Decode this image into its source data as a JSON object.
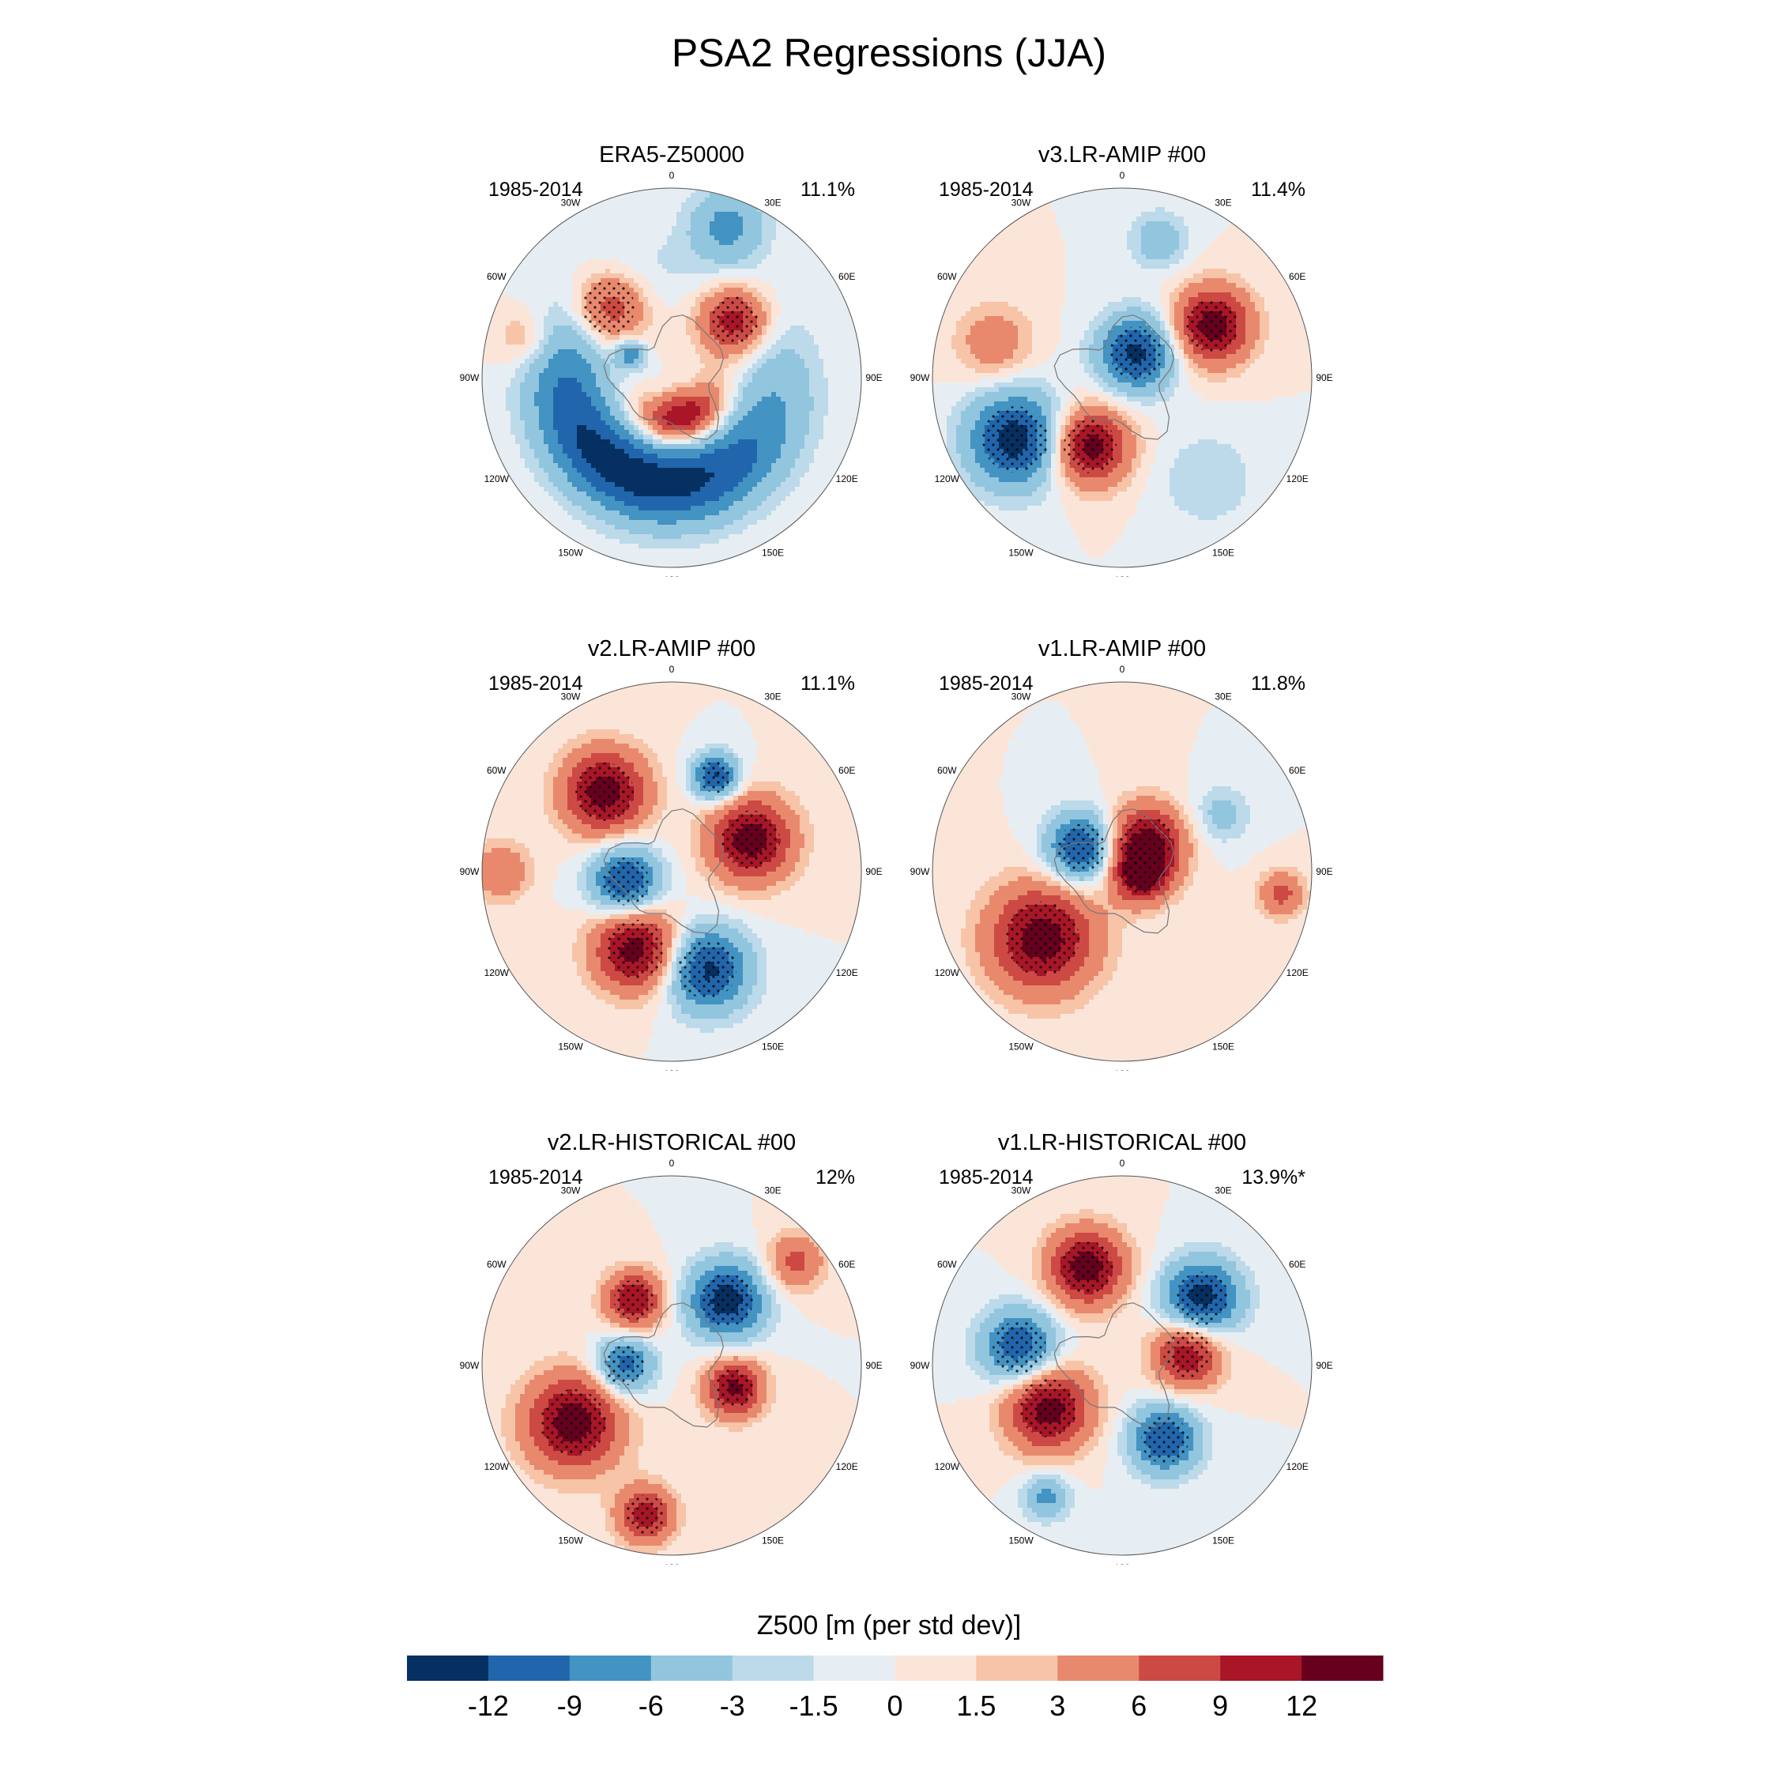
{
  "title": "PSA2 Regressions (JJA)",
  "lon_labels": [
    "0",
    "30E",
    "60E",
    "90E",
    "120E",
    "150E",
    "180",
    "150W",
    "120W",
    "90W",
    "60W",
    "30W"
  ],
  "panels": [
    {
      "title": "ERA5-Z50000",
      "period": "1985-2014",
      "percent": "11.1%",
      "blobs": [
        {
          "lon": 200,
          "r": 0.55,
          "w": 0.4,
          "v": -14,
          "arc": 110
        },
        {
          "lon": 165,
          "r": 0.22,
          "w": 0.22,
          "v": 13,
          "arc": 60
        },
        {
          "lon": 318,
          "r": 0.5,
          "w": 0.2,
          "v": 11
        },
        {
          "lon": 48,
          "r": 0.45,
          "w": 0.18,
          "v": 12
        },
        {
          "lon": 20,
          "r": 0.85,
          "w": 0.2,
          "v": -7
        },
        {
          "lon": 300,
          "r": 0.25,
          "w": 0.08,
          "v": -8
        },
        {
          "lon": 285,
          "r": 0.8,
          "w": 0.15,
          "v": 4
        }
      ]
    },
    {
      "title": "v3.LR-AMIP  #00",
      "period": "1985-2014",
      "percent": "11.4%",
      "blobs": [
        {
          "lon": 240,
          "r": 0.65,
          "w": 0.25,
          "v": -14
        },
        {
          "lon": 30,
          "r": 0.15,
          "w": 0.2,
          "v": -13
        },
        {
          "lon": 60,
          "r": 0.55,
          "w": 0.2,
          "v": 14
        },
        {
          "lon": 205,
          "r": 0.4,
          "w": 0.2,
          "v": 14
        },
        {
          "lon": 285,
          "r": 0.7,
          "w": 0.2,
          "v": 5
        },
        {
          "lon": 140,
          "r": 0.7,
          "w": 0.25,
          "v": -3
        },
        {
          "lon": 15,
          "r": 0.75,
          "w": 0.15,
          "v": -5
        }
      ]
    },
    {
      "title": "v2.LR-AMIP  #00",
      "period": "1985-2014",
      "percent": "11.1%",
      "blobs": [
        {
          "lon": 320,
          "r": 0.55,
          "w": 0.22,
          "v": 14
        },
        {
          "lon": 25,
          "r": 0.55,
          "w": 0.12,
          "v": -13
        },
        {
          "lon": 68,
          "r": 0.45,
          "w": 0.22,
          "v": 14
        },
        {
          "lon": 258,
          "r": 0.25,
          "w": 0.18,
          "v": -13
        },
        {
          "lon": 205,
          "r": 0.45,
          "w": 0.22,
          "v": 14
        },
        {
          "lon": 160,
          "r": 0.55,
          "w": 0.22,
          "v": -13
        },
        {
          "lon": 270,
          "r": 0.9,
          "w": 0.15,
          "v": 6
        }
      ]
    },
    {
      "title": "v1.LR-AMIP  #00",
      "period": "1985-2014",
      "percent": "11.8%",
      "blobs": [
        {
          "lon": 230,
          "r": 0.55,
          "w": 0.28,
          "v": 14
        },
        {
          "lon": 300,
          "r": 0.25,
          "w": 0.18,
          "v": -13
        },
        {
          "lon": 40,
          "r": 0.2,
          "w": 0.2,
          "v": 13
        },
        {
          "lon": 100,
          "r": 0.1,
          "w": 0.15,
          "v": 12
        },
        {
          "lon": 60,
          "r": 0.6,
          "w": 0.15,
          "v": -4
        },
        {
          "lon": 98,
          "r": 0.85,
          "w": 0.12,
          "v": 7
        }
      ]
    },
    {
      "title": "v2.LR-HISTORICAL  #00",
      "period": "1985-2014",
      "percent": "12%",
      "blobs": [
        {
          "lon": 240,
          "r": 0.6,
          "w": 0.25,
          "v": 14
        },
        {
          "lon": 40,
          "r": 0.45,
          "w": 0.2,
          "v": -14
        },
        {
          "lon": 270,
          "r": 0.25,
          "w": 0.15,
          "v": -11
        },
        {
          "lon": 330,
          "r": 0.4,
          "w": 0.15,
          "v": 12
        },
        {
          "lon": 110,
          "r": 0.35,
          "w": 0.15,
          "v": 13
        },
        {
          "lon": 190,
          "r": 0.8,
          "w": 0.15,
          "v": 11
        },
        {
          "lon": 50,
          "r": 0.85,
          "w": 0.15,
          "v": 7
        }
      ]
    },
    {
      "title": "v1.LR-HISTORICAL  #00",
      "period": "1985-2014",
      "percent": "13.9%*",
      "blobs": [
        {
          "lon": 340,
          "r": 0.55,
          "w": 0.2,
          "v": 14
        },
        {
          "lon": 50,
          "r": 0.55,
          "w": 0.2,
          "v": -14
        },
        {
          "lon": 280,
          "r": 0.55,
          "w": 0.2,
          "v": -12
        },
        {
          "lon": 240,
          "r": 0.45,
          "w": 0.22,
          "v": 14
        },
        {
          "lon": 80,
          "r": 0.35,
          "w": 0.18,
          "v": 12
        },
        {
          "lon": 150,
          "r": 0.45,
          "w": 0.18,
          "v": -12
        },
        {
          "lon": 210,
          "r": 0.8,
          "w": 0.12,
          "v": -7
        }
      ]
    }
  ],
  "colorbar": {
    "title": "Z500 [m (per std dev)]",
    "ticks": [
      "-12",
      "-9",
      "-6",
      "-3",
      "-1.5",
      "0",
      "1.5",
      "3",
      "6",
      "9",
      "12"
    ],
    "levels": [
      -12,
      -9,
      -6,
      -3,
      -1.5,
      0,
      1.5,
      3,
      6,
      9,
      12
    ],
    "colors": [
      "#053061",
      "#2166ac",
      "#4393c3",
      "#92c5de",
      "#bcdaea",
      "#e7eef3",
      "#fbe5d9",
      "#f7c4a8",
      "#e8896e",
      "#cd4a44",
      "#a81628",
      "#67001f"
    ]
  }
}
